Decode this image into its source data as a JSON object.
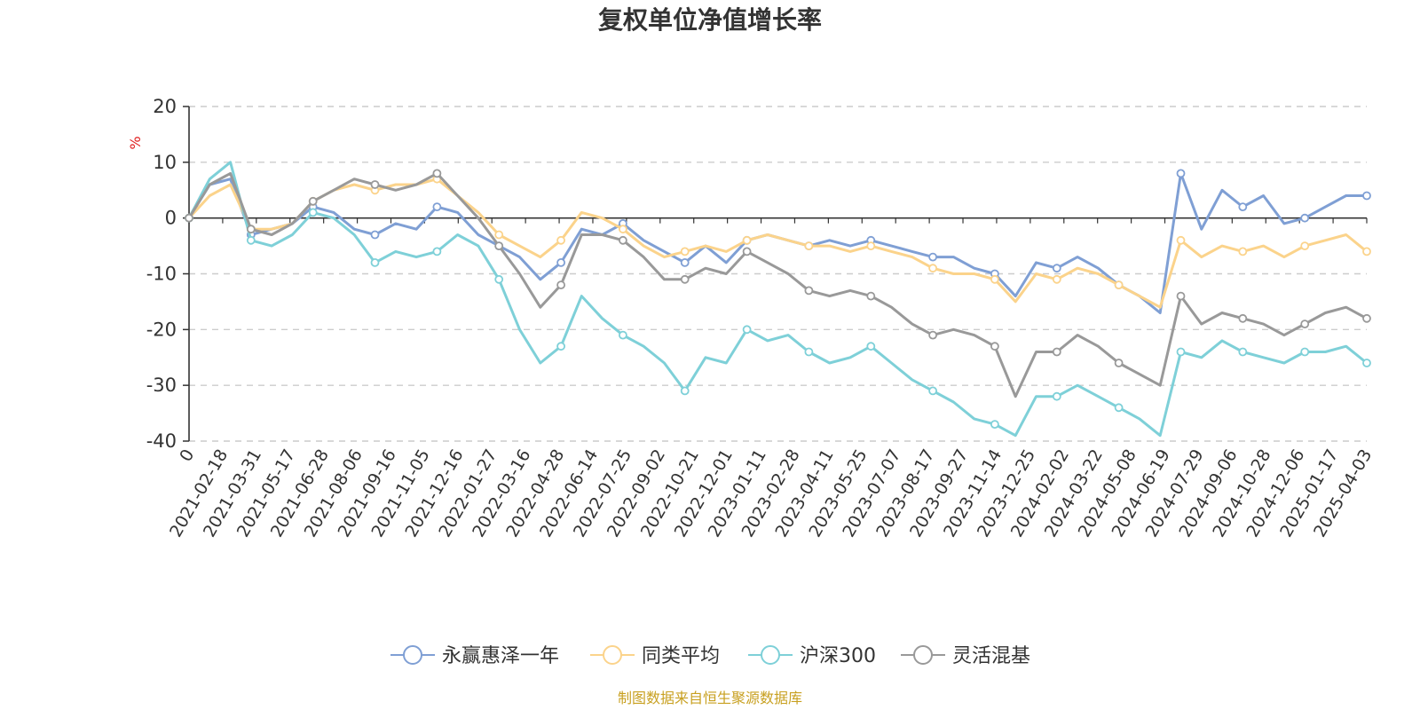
{
  "chart_data": {
    "type": "line",
    "title": "复权单位净值增长率",
    "ylabel": "%",
    "xlabel": "",
    "ylim": [
      -40,
      20
    ],
    "yticks": [
      20,
      10,
      0,
      -10,
      -20,
      -30,
      -40
    ],
    "xticks": [
      "0",
      "2021-02-18",
      "2021-03-31",
      "2021-05-17",
      "2021-06-28",
      "2021-08-06",
      "2021-09-16",
      "2021-11-05",
      "2021-12-16",
      "2022-01-27",
      "2022-03-16",
      "2022-04-28",
      "2022-06-14",
      "2022-07-25",
      "2022-09-02",
      "2022-10-21",
      "2022-12-01",
      "2023-01-11",
      "2023-02-28",
      "2023-04-11",
      "2023-05-25",
      "2023-07-07",
      "2023-08-17",
      "2023-09-27",
      "2023-11-14",
      "2023-12-25",
      "2024-02-02",
      "2024-03-22",
      "2024-05-08",
      "2024-06-19",
      "2024-07-29",
      "2024-09-06",
      "2024-10-28",
      "2024-12-06",
      "2025-01-17",
      "2025-04-03"
    ],
    "grid": true,
    "legend_position": "bottom",
    "source_note": "制图数据来自恒生聚源数据库",
    "series": [
      {
        "name": "永赢惠泽一年",
        "color": "#7f9fd4",
        "values": [
          0,
          6,
          7,
          -3,
          -2,
          -1,
          2,
          1,
          -2,
          -3,
          -1,
          -2,
          2,
          1,
          -3,
          -5,
          -7,
          -11,
          -8,
          -2,
          -3,
          -1,
          -4,
          -6,
          -8,
          -5,
          -8,
          -4,
          -3,
          -4,
          -5,
          -4,
          -5,
          -4,
          -5,
          -6,
          -7,
          -7,
          -9,
          -10,
          -14,
          -8,
          -9,
          -7,
          -9,
          -12,
          -14,
          -17,
          8,
          -2,
          5,
          2,
          4,
          -1,
          0,
          2,
          4,
          4
        ]
      },
      {
        "name": "同类平均",
        "color": "#fbd38b",
        "values": [
          0,
          4,
          6,
          -2,
          -2,
          -1,
          3,
          5,
          6,
          5,
          6,
          6,
          7,
          4,
          1,
          -3,
          -5,
          -7,
          -4,
          1,
          0,
          -2,
          -5,
          -7,
          -6,
          -5,
          -6,
          -4,
          -3,
          -4,
          -5,
          -5,
          -6,
          -5,
          -6,
          -7,
          -9,
          -10,
          -10,
          -11,
          -15,
          -10,
          -11,
          -9,
          -10,
          -12,
          -14,
          -16,
          -4,
          -7,
          -5,
          -6,
          -5,
          -7,
          -5,
          -4,
          -3,
          -6
        ]
      },
      {
        "name": "沪深300",
        "color": "#7ed0d8",
        "values": [
          0,
          7,
          10,
          -4,
          -5,
          -3,
          1,
          0,
          -3,
          -8,
          -6,
          -7,
          -6,
          -3,
          -5,
          -11,
          -20,
          -26,
          -23,
          -14,
          -18,
          -21,
          -23,
          -26,
          -31,
          -25,
          -26,
          -20,
          -22,
          -21,
          -24,
          -26,
          -25,
          -23,
          -26,
          -29,
          -31,
          -33,
          -36,
          -37,
          -39,
          -32,
          -32,
          -30,
          -32,
          -34,
          -36,
          -39,
          -24,
          -25,
          -22,
          -24,
          -25,
          -26,
          -24,
          -24,
          -23,
          -26
        ]
      },
      {
        "name": "灵活混基",
        "color": "#999999",
        "values": [
          0,
          6,
          8,
          -2,
          -3,
          -1,
          3,
          5,
          7,
          6,
          5,
          6,
          8,
          4,
          0,
          -5,
          -10,
          -16,
          -12,
          -3,
          -3,
          -4,
          -7,
          -11,
          -11,
          -9,
          -10,
          -6,
          -8,
          -10,
          -13,
          -14,
          -13,
          -14,
          -16,
          -19,
          -21,
          -20,
          -21,
          -23,
          -32,
          -24,
          -24,
          -21,
          -23,
          -26,
          -28,
          -30,
          -14,
          -19,
          -17,
          -18,
          -19,
          -21,
          -19,
          -17,
          -16,
          -18
        ]
      }
    ]
  }
}
